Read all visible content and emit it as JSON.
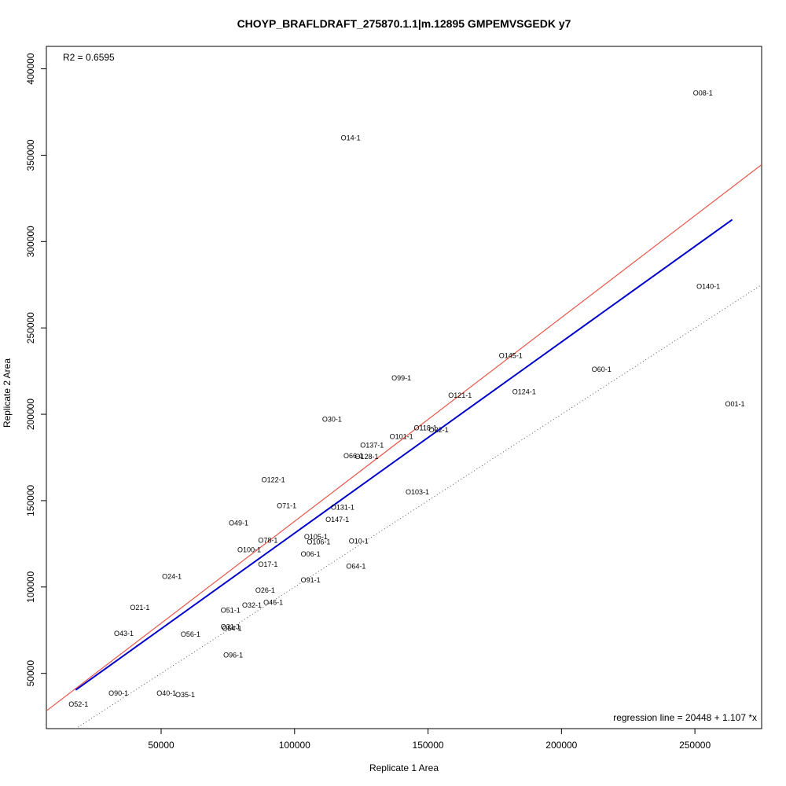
{
  "chart_data": {
    "type": "scatter",
    "title": "CHOYP_BRAFLDRAFT_275870.1.1|m.12895 GMPEMVSGEDK y7",
    "xlabel": "Replicate 1 Area",
    "ylabel": "Replicate 2 Area",
    "xlim": [
      7000,
      275000
    ],
    "ylim": [
      18000,
      413000
    ],
    "xticks": [
      50000,
      100000,
      150000,
      200000,
      250000
    ],
    "yticks": [
      50000,
      100000,
      150000,
      200000,
      250000,
      300000,
      350000,
      400000
    ],
    "grid": false,
    "r2_text": "R2 = 0.6595",
    "regression_text": "regression line = 20448 + 1.107 *x",
    "regression": {
      "intercept": 20448,
      "slope": 1.107,
      "x_range": [
        18000,
        264000
      ],
      "color": "#0000cc"
    },
    "reference_lines": [
      {
        "name": "red",
        "intercept": 20000,
        "slope": 1.18,
        "color": "#e8564a",
        "style": "solid"
      },
      {
        "name": "identity",
        "intercept": 0,
        "slope": 1.0,
        "color": "#555555",
        "style": "dotted"
      }
    ],
    "points": [
      {
        "label": "O08-1",
        "x": 253000,
        "y": 386000
      },
      {
        "label": "O14-1",
        "x": 121000,
        "y": 360000
      },
      {
        "label": "O140-1",
        "x": 255000,
        "y": 274000
      },
      {
        "label": "O145-1",
        "x": 181000,
        "y": 234000
      },
      {
        "label": "O60-1",
        "x": 215000,
        "y": 226000
      },
      {
        "label": "O99-1",
        "x": 140000,
        "y": 221000
      },
      {
        "label": "O124-1",
        "x": 186000,
        "y": 213000
      },
      {
        "label": "O121-1",
        "x": 162000,
        "y": 211000
      },
      {
        "label": "O01-1",
        "x": 265000,
        "y": 206000
      },
      {
        "label": "O30-1",
        "x": 114000,
        "y": 197000
      },
      {
        "label": "O118-1",
        "x": 149000,
        "y": 192000
      },
      {
        "label": "O22-1",
        "x": 154000,
        "y": 191000
      },
      {
        "label": "O101-1",
        "x": 140000,
        "y": 187000
      },
      {
        "label": "O137-1",
        "x": 129000,
        "y": 182000
      },
      {
        "label": "O66-1",
        "x": 122000,
        "y": 176000
      },
      {
        "label": "O128-1",
        "x": 127000,
        "y": 175500
      },
      {
        "label": "O122-1",
        "x": 92000,
        "y": 162000
      },
      {
        "label": "O103-1",
        "x": 146000,
        "y": 155000
      },
      {
        "label": "O71-1",
        "x": 97000,
        "y": 147000
      },
      {
        "label": "O131-1",
        "x": 118000,
        "y": 146000
      },
      {
        "label": "O147-1",
        "x": 116000,
        "y": 139000
      },
      {
        "label": "O49-1",
        "x": 79000,
        "y": 137000
      },
      {
        "label": "O105-1",
        "x": 108000,
        "y": 129000
      },
      {
        "label": "O78-1",
        "x": 90000,
        "y": 127000
      },
      {
        "label": "O10-1",
        "x": 124000,
        "y": 126500
      },
      {
        "label": "O106-1",
        "x": 109000,
        "y": 126000
      },
      {
        "label": "O100-1",
        "x": 83000,
        "y": 121500
      },
      {
        "label": "O06-1",
        "x": 106000,
        "y": 119000
      },
      {
        "label": "O17-1",
        "x": 90000,
        "y": 113000
      },
      {
        "label": "O64-1",
        "x": 123000,
        "y": 112000
      },
      {
        "label": "O24-1",
        "x": 54000,
        "y": 106000
      },
      {
        "label": "O91-1",
        "x": 106000,
        "y": 104000
      },
      {
        "label": "O26-1",
        "x": 89000,
        "y": 98000
      },
      {
        "label": "O46-1",
        "x": 92000,
        "y": 91000
      },
      {
        "label": "O32-1",
        "x": 84000,
        "y": 89500
      },
      {
        "label": "O21-1",
        "x": 42000,
        "y": 88000
      },
      {
        "label": "O51-1",
        "x": 76000,
        "y": 86500
      },
      {
        "label": "O31-1",
        "x": 76000,
        "y": 77000
      },
      {
        "label": "O54-1",
        "x": 76500,
        "y": 76000
      },
      {
        "label": "O43-1",
        "x": 36000,
        "y": 73000
      },
      {
        "label": "O56-1",
        "x": 61000,
        "y": 72500
      },
      {
        "label": "O96-1",
        "x": 77000,
        "y": 60500
      },
      {
        "label": "O90-1",
        "x": 34000,
        "y": 38500
      },
      {
        "label": "O40-1",
        "x": 52000,
        "y": 38500
      },
      {
        "label": "O35-1",
        "x": 59000,
        "y": 37500
      },
      {
        "label": "O52-1",
        "x": 19000,
        "y": 32000
      }
    ]
  }
}
